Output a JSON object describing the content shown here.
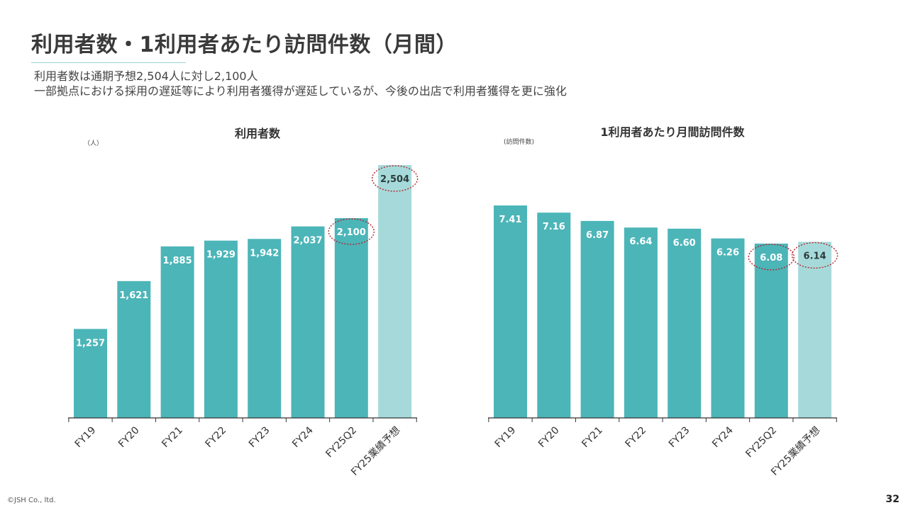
{
  "slide": {
    "title": "利用者数・1利用者あたり訪問件数（月間）",
    "summary_lines": [
      "利用者数は通期予想2,504人に対し2,100人",
      "一部拠点における採用の遅延等により利用者獲得が遅延しているが、今後の出店で利用者獲得を更に強化"
    ],
    "copyright": "©JSH Co., ltd.",
    "page_number": "32"
  },
  "colors": {
    "actual_bar": "#4cb5b8",
    "forecast_bar": "#a6dada",
    "highlight_circle": "#b3242f",
    "axis": "#333333"
  },
  "chart_data": [
    {
      "type": "bar",
      "title": "利用者数",
      "unit_label": "（人）",
      "categories": [
        "FY19",
        "FY20",
        "FY21",
        "FY22",
        "FY23",
        "FY24",
        "FY25Q2",
        "FY25業績予想"
      ],
      "values": [
        1257,
        1621,
        1885,
        1929,
        1942,
        2037,
        2100,
        2504
      ],
      "value_labels": [
        "1,257",
        "1,621",
        "1,885",
        "1,929",
        "1,942",
        "2,037",
        "2,100",
        "2,504"
      ],
      "forecast_index": 7,
      "highlighted_indices": [
        6,
        7
      ],
      "ylim": [
        580,
        2504
      ],
      "y_axis_visible": false,
      "grid": false
    },
    {
      "type": "bar",
      "title": "1利用者あたり月間訪問件数",
      "unit_label": "(訪問件数)",
      "categories": [
        "FY19",
        "FY20",
        "FY21",
        "FY22",
        "FY23",
        "FY24",
        "FY25Q2",
        "FY25業績予想"
      ],
      "values": [
        7.41,
        7.16,
        6.87,
        6.64,
        6.6,
        6.26,
        6.08,
        6.14
      ],
      "value_labels": [
        "7.41",
        "7.16",
        "6.87",
        "6.64",
        "6.60",
        "6.26",
        "6.08",
        "6.14"
      ],
      "forecast_index": 7,
      "highlighted_indices": [
        6,
        7
      ],
      "ylim": [
        0,
        8.82
      ],
      "y_axis_visible": false,
      "grid": false
    }
  ]
}
